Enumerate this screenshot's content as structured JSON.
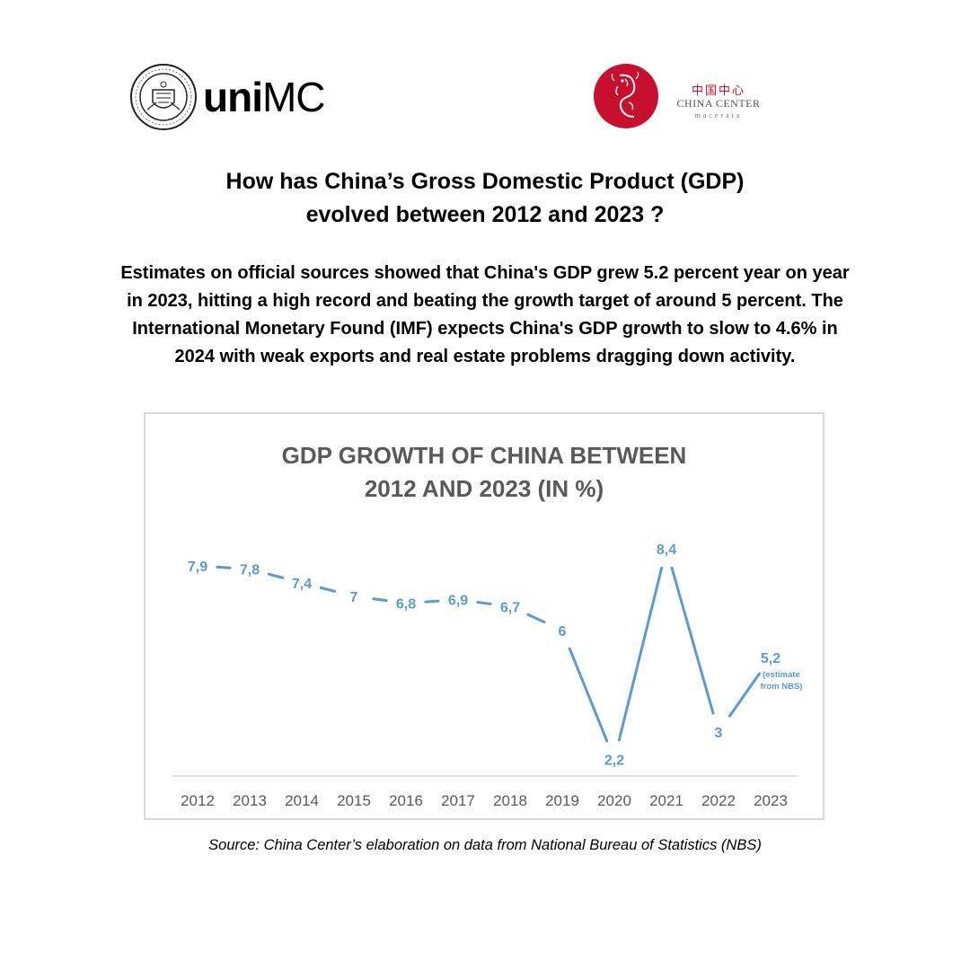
{
  "logos": {
    "unimc": {
      "wordmark_bold": "uni",
      "wordmark_light": "MC",
      "seal_text": "UNIVERSITATIS MACERATENSIS SIGILLUM"
    },
    "china_center": {
      "chars": "中国中心",
      "name": "CHINA CENTER",
      "city": "macerata",
      "color": "#c8102e"
    }
  },
  "headline": {
    "line1": "How has China’s Gross Domestic Product (GDP)",
    "line2": "evolved between 2012 and 2023 ?"
  },
  "intro": {
    "line1": "Estimates on official sources showed that China's GDP grew 5.2 percent year on year",
    "line2": "in 2023, hitting a high record and beating the growth target of around 5 percent. The",
    "line3": "International Monetary Found (IMF) expects China's GDP growth to slow to 4.6% in",
    "line4": "2024 with weak exports and real estate problems dragging down activity."
  },
  "chart_data": {
    "type": "line",
    "title_line1": "GDP GROWTH OF CHINA BETWEEN",
    "title_line2": "2012 AND 2023 (IN %)",
    "categories": [
      "2012",
      "2013",
      "2014",
      "2015",
      "2016",
      "2017",
      "2018",
      "2019",
      "2020",
      "2021",
      "2022",
      "2023"
    ],
    "values": [
      7.9,
      7.8,
      7.4,
      7,
      6.8,
      6.9,
      6.7,
      6,
      2.2,
      8.4,
      3,
      5.2
    ],
    "data_labels": [
      "7,9",
      "7,8",
      "7,4",
      "7",
      "6,8",
      "6,9",
      "6,7",
      "6",
      "2,2",
      "8,4",
      "3",
      "5,2"
    ],
    "annotation": {
      "line1": "(estimate",
      "line2": "from NBS)"
    },
    "ylim": [
      0,
      10
    ],
    "grid": false,
    "legend": "none",
    "line_color": "#5b9bd5",
    "label_color": "#5b9bd5",
    "axis_label_color": "#595959"
  },
  "source": "Source: China Center’s elaboration on data from National Bureau of Statistics (NBS)"
}
